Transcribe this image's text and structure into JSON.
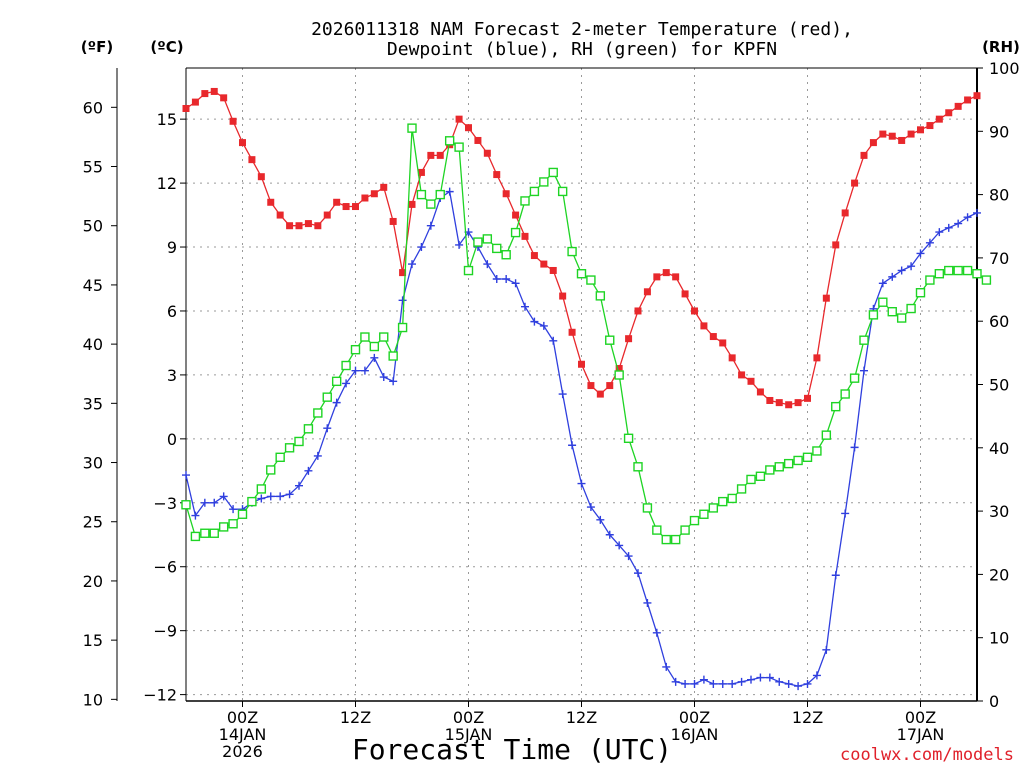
{
  "chart_data": {
    "type": "line",
    "title_line1": "2026011318 NAM Forecast 2-meter Temperature (red),",
    "title_line2": "Dewpoint (blue), RH (green) for KPFN",
    "xlabel": "Forecast Time (UTC)",
    "credit": "coolwx.com/models",
    "units": {
      "f": "(ºF)",
      "c": "(ºC)",
      "rh": "(RH)"
    },
    "x_range_hours": [
      18,
      102
    ],
    "x_step_hours": 1,
    "x_ticks": [
      {
        "hour": 24,
        "line1": "00Z",
        "line2": "14JAN",
        "line3": "2026"
      },
      {
        "hour": 36,
        "line1": "12Z",
        "line2": "",
        "line3": ""
      },
      {
        "hour": 48,
        "line1": "00Z",
        "line2": "15JAN",
        "line3": ""
      },
      {
        "hour": 60,
        "line1": "12Z",
        "line2": "",
        "line3": ""
      },
      {
        "hour": 72,
        "line1": "00Z",
        "line2": "16JAN",
        "line3": ""
      },
      {
        "hour": 84,
        "line1": "12Z",
        "line2": "",
        "line3": ""
      },
      {
        "hour": 96,
        "line1": "00Z",
        "line2": "17JAN",
        "line3": ""
      }
    ],
    "axes": {
      "celsius": {
        "range": [
          -12.3,
          17.4
        ],
        "ticks": [
          -12,
          -9,
          -6,
          -3,
          0,
          3,
          6,
          9,
          12,
          15
        ],
        "labels": [
          "−12",
          "−9",
          "−6",
          "−3",
          "0",
          "3",
          "6",
          "9",
          "12",
          "15"
        ]
      },
      "fahrenheit": {
        "range": [
          9.86,
          63.32
        ],
        "ticks": [
          10,
          15,
          20,
          25,
          30,
          35,
          40,
          45,
          50,
          55,
          60
        ],
        "labels": [
          "10",
          "15",
          "20",
          "25",
          "30",
          "35",
          "40",
          "45",
          "50",
          "55",
          "60"
        ]
      },
      "rh": {
        "range": [
          0,
          100
        ],
        "ticks": [
          0,
          10,
          20,
          30,
          40,
          50,
          60,
          70,
          80,
          90,
          100
        ],
        "labels": [
          "0",
          "10",
          "20",
          "30",
          "40",
          "50",
          "60",
          "70",
          "80",
          "90",
          "100"
        ]
      }
    },
    "series": [
      {
        "name": "2-meter Temperature",
        "unit": "C",
        "color": "#e8282c",
        "marker": "filled-square",
        "values": [
          15.5,
          15.8,
          16.2,
          16.3,
          16.0,
          14.9,
          13.9,
          13.1,
          12.3,
          11.1,
          10.5,
          10.0,
          10.0,
          10.1,
          10.0,
          10.5,
          11.1,
          10.9,
          10.9,
          11.3,
          11.5,
          11.8,
          10.2,
          7.8,
          11.0,
          12.5,
          13.3,
          13.3,
          13.8,
          15.0,
          14.6,
          14.0,
          13.4,
          12.4,
          11.5,
          10.5,
          9.5,
          8.6,
          8.2,
          7.9,
          6.7,
          5.0,
          3.5,
          2.5,
          2.1,
          2.5,
          3.3,
          4.7,
          6.0,
          6.9,
          7.6,
          7.8,
          7.6,
          6.8,
          6.0,
          5.3,
          4.8,
          4.5,
          3.8,
          3.0,
          2.7,
          2.2,
          1.8,
          1.7,
          1.6,
          1.7,
          1.9,
          3.8,
          6.6,
          9.1,
          10.6,
          12.0,
          13.3,
          13.9,
          14.3,
          14.2,
          14.0,
          14.3,
          14.5,
          14.7,
          15.0,
          15.3,
          15.6,
          15.9,
          16.1
        ]
      },
      {
        "name": "Dewpoint",
        "unit": "C",
        "color": "#2f3fde",
        "marker": "plus",
        "values": [
          -1.7,
          -3.6,
          -3.0,
          -3.0,
          -2.7,
          -3.3,
          -3.3,
          -3.0,
          -2.8,
          -2.7,
          -2.7,
          -2.6,
          -2.2,
          -1.5,
          -0.8,
          0.5,
          1.7,
          2.6,
          3.2,
          3.2,
          3.8,
          2.9,
          2.7,
          6.5,
          8.2,
          9.0,
          10.0,
          11.3,
          11.6,
          9.1,
          9.7,
          9.0,
          8.2,
          7.5,
          7.5,
          7.3,
          6.2,
          5.5,
          5.3,
          4.6,
          2.1,
          -0.3,
          -2.1,
          -3.2,
          -3.8,
          -4.5,
          -5.0,
          -5.5,
          -6.3,
          -7.7,
          -9.1,
          -10.7,
          -11.4,
          -11.5,
          -11.5,
          -11.3,
          -11.5,
          -11.5,
          -11.5,
          -11.4,
          -11.3,
          -11.2,
          -11.2,
          -11.4,
          -11.5,
          -11.6,
          -11.5,
          -11.1,
          -9.9,
          -6.4,
          -3.5,
          -0.4,
          3.2,
          6.1,
          7.3,
          7.6,
          7.9,
          8.1,
          8.7,
          9.2,
          9.7,
          9.9,
          10.1,
          10.4,
          10.6
        ]
      },
      {
        "name": "RH",
        "unit": "%",
        "color": "#1ed424",
        "marker": "open-square",
        "values": [
          31,
          26,
          26.5,
          26.5,
          27.5,
          28,
          29.5,
          31.5,
          33.5,
          36.5,
          38.5,
          40,
          41,
          43,
          45.5,
          48,
          50.5,
          53,
          55.5,
          57.5,
          56,
          57.5,
          54.5,
          59,
          90.5,
          80,
          78.5,
          80,
          88.5,
          87.5,
          68,
          72.5,
          73,
          71.5,
          70.5,
          74,
          79,
          80.5,
          82,
          83.5,
          80.5,
          71,
          67.5,
          66.5,
          64,
          57,
          51.5,
          41.5,
          37,
          30.5,
          27,
          25.5,
          25.5,
          27,
          28.5,
          29.5,
          30.5,
          31.5,
          32,
          33.5,
          35,
          35.5,
          36.5,
          37,
          37.5,
          38,
          38.5,
          39.5,
          42,
          46.5,
          48.5,
          51,
          57,
          61,
          63,
          61.5,
          60.5,
          62,
          64.5,
          66.5,
          67.5,
          68,
          68,
          68,
          67.5,
          66.5
        ]
      }
    ]
  }
}
